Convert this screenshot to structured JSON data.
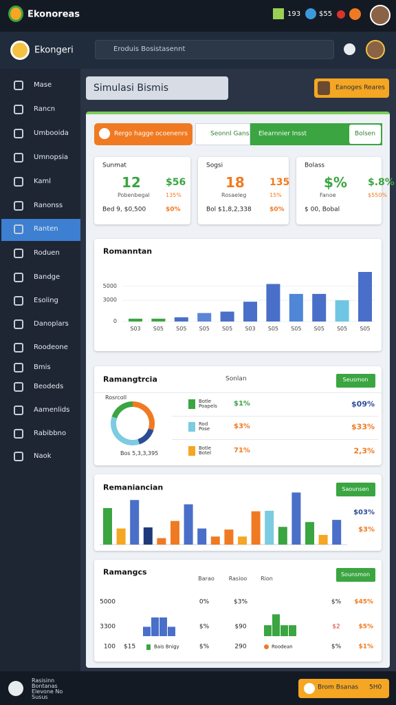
{
  "topbar": {
    "brand": "Ekonoreas",
    "counter": "193",
    "price": "$55"
  },
  "navbar": {
    "title": "Ekongeri",
    "search": "Eroduis Bosistasennt"
  },
  "sidebar": {
    "items": [
      "Mase",
      "Rancn",
      "Umbooida",
      "Umnopsia",
      "Kaml",
      "Ranonss",
      "Ranten",
      "Roduen",
      "Bandge",
      "Esoling",
      "Danoplars",
      "Roodeone",
      "Bmis",
      "Beodeds",
      "Aamenlids",
      "Rabibbno",
      "Naok"
    ],
    "active": 6
  },
  "header": {
    "title": "Simulasi Bismis",
    "button": "Eanoges Reares"
  },
  "tabs": [
    "Rergo hagge ocoenenrs",
    "Seonnl Gans",
    "Elearnnier Insst",
    "Bolsen"
  ],
  "stats": [
    {
      "label": "Sunmat",
      "main": "12",
      "side": "$56",
      "sub1": "Pobenbegal",
      "sub2": "135%",
      "foot1": "Bed 9, $0,500",
      "foot2": "$0%"
    },
    {
      "label": "Sogsi",
      "main": "18",
      "side": "135",
      "sub1": "Rosaeleg",
      "sub2": "15%",
      "foot1": "Bol $1,8,2,338",
      "foot2": "$0%"
    },
    {
      "label": "Bolass",
      "main": "$%",
      "side": "$.8%",
      "sub1": "Fanoe",
      "sub2": "$550%",
      "foot1": "$ 00, Bobal"
    }
  ],
  "bar_chart": {
    "title": "Romanntan",
    "categories": [
      "S03",
      "S05",
      "S05",
      "S05",
      "S05",
      "S03",
      "S05",
      "S05",
      "S05",
      "S05",
      "S05"
    ],
    "values": [
      400,
      400,
      600,
      1200,
      1400,
      2800,
      5300,
      3900,
      3900,
      3000,
      7000
    ],
    "colors": [
      "#3aa541",
      "#3aa541",
      "#4a6fc9",
      "#5b86d8",
      "#4a6fc9",
      "#4a6fc9",
      "#4a6fc9",
      "#4f86d6",
      "#4a6fc9",
      "#6fc6e3",
      "#4a6fc9"
    ],
    "ylim": [
      0,
      7000
    ],
    "yticks": [
      0,
      3000,
      5000
    ]
  },
  "share": {
    "title": "Ramangtrcia",
    "column": "Sonlan",
    "button": "Seusmon",
    "center_label": "Bos 5,3,3,395",
    "small_label": "Rosrcoll",
    "donut": {
      "values": [
        30,
        15,
        35,
        20
      ],
      "colors": [
        "#f07a22",
        "#2e4c96",
        "#7ccbe0",
        "#3aa541"
      ]
    },
    "rows": [
      {
        "name": "Botle Poapels",
        "pct": "$1%",
        "right": "$09%"
      },
      {
        "name": "Rod Pose",
        "pct": "$3%",
        "right": "$33%"
      },
      {
        "name": "Botle Botel",
        "pct": "71%",
        "right": "2,3%"
      }
    ]
  },
  "grouped_chart": {
    "title": "Remaniancian",
    "button": "Saounsen",
    "labels": [
      "$03%",
      "$3%"
    ],
    "values": [
      68,
      30,
      83,
      32,
      12,
      44,
      75,
      30,
      15,
      28,
      15,
      62,
      63,
      33,
      97,
      42,
      18,
      46
    ],
    "colors": [
      "#3aa541",
      "#f5a623",
      "#4a6fc9",
      "#1f3a7a",
      "#f07a22",
      "#f07a22",
      "#4a6fc9",
      "#4a6fc9",
      "#f07a22",
      "#f07a22",
      "#f5a623",
      "#f07a22",
      "#7ccbe0",
      "#3aa541",
      "#4a6fc9",
      "#3aa541",
      "#f5a623",
      "#4a6fc9"
    ],
    "ylim": [
      0,
      100
    ]
  },
  "table": {
    "title": "Ramangcs",
    "button": "Sounsmon",
    "headers": [
      "Barao",
      "Rasioo",
      "Rion"
    ],
    "rows": [
      [
        "5000",
        "0%",
        "$3%",
        "$%",
        "$45%"
      ],
      [
        "3300",
        "$%",
        "$90",
        "$2",
        "$5%"
      ],
      [
        "100",
        "$%",
        "290",
        "$%",
        "$1%"
      ]
    ],
    "legend": [
      "$15",
      "Bais Bnigy",
      "Roodean"
    ],
    "bars": {
      "values": [
        12,
        24,
        24,
        12,
        14,
        28,
        14,
        14
      ],
      "colors": [
        "#4a6fc9",
        "#4a6fc9",
        "#4a6fc9",
        "#4a6fc9",
        "#3aa541",
        "#3aa541",
        "#3aa541",
        "#3aa541"
      ],
      "ylim": [
        0,
        30
      ]
    }
  },
  "footer": {
    "text": "Rasisinn Bontanas Elevone No Susus",
    "button": "Brom Bsanas",
    "button_value": "5H0"
  }
}
